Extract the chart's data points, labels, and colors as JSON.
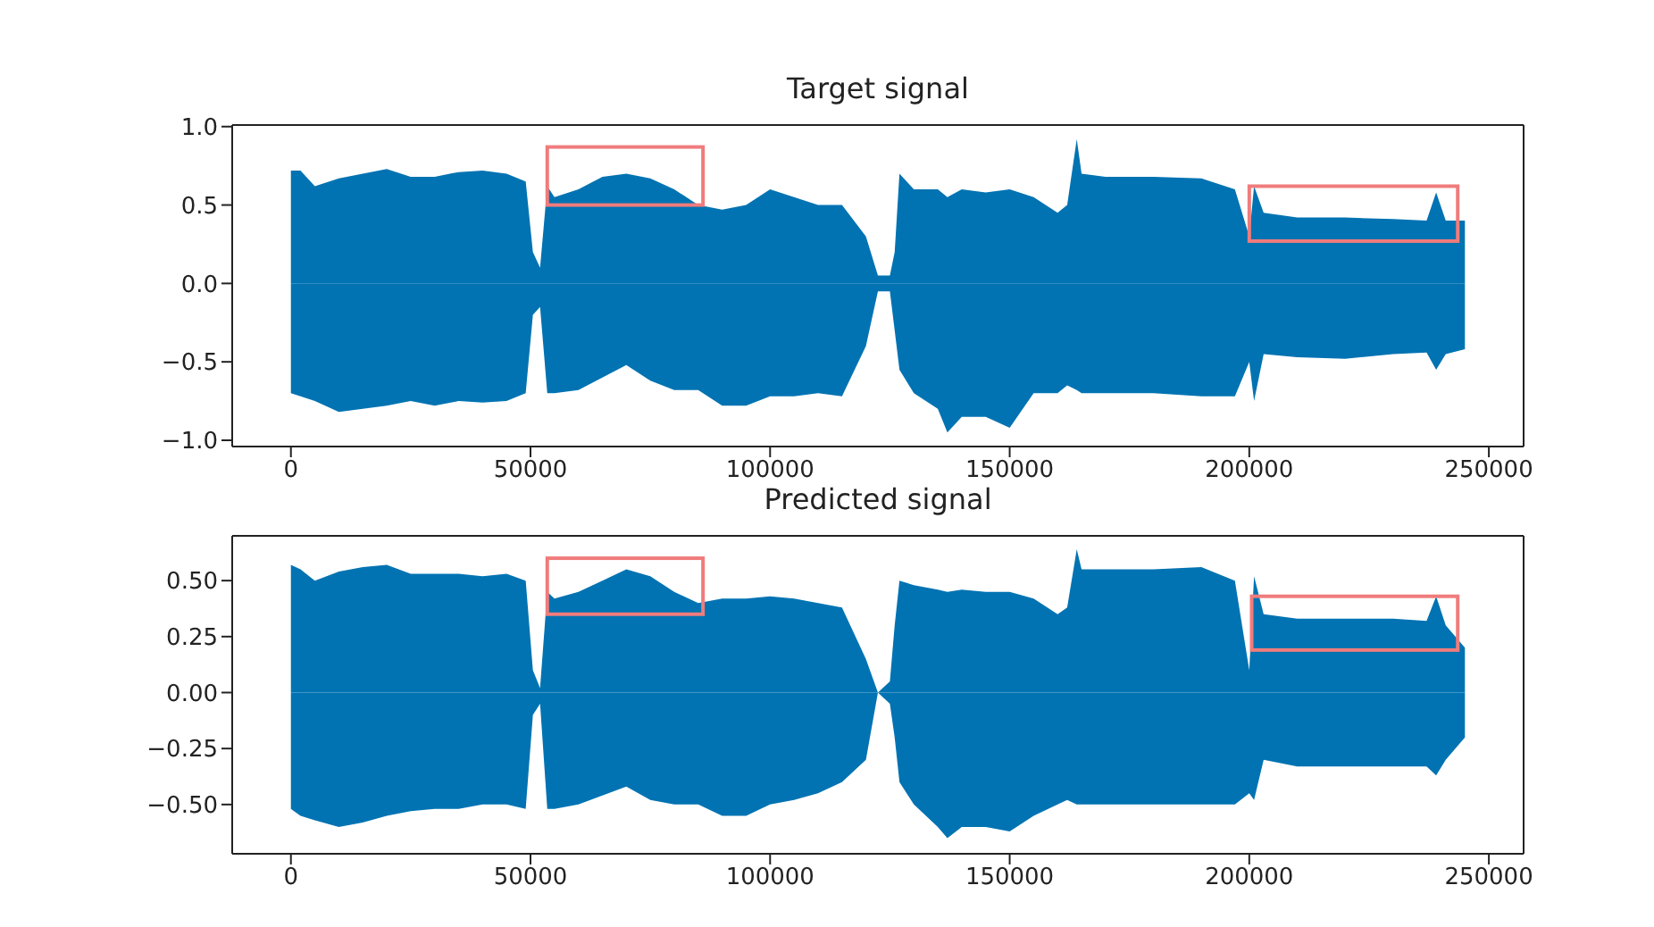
{
  "chart_data": [
    {
      "type": "area",
      "title": "Target signal",
      "x": [
        0,
        2000,
        5000,
        10000,
        15000,
        20000,
        25000,
        30000,
        35000,
        40000,
        45000,
        49000,
        50500,
        52000,
        53500,
        55000,
        60000,
        65000,
        70000,
        75000,
        80000,
        85000,
        90000,
        95000,
        100000,
        105000,
        110000,
        115000,
        120000,
        122500,
        125000,
        126000,
        127000,
        130000,
        135000,
        137000,
        140000,
        145000,
        150000,
        155000,
        160000,
        162000,
        164000,
        165000,
        170000,
        180000,
        190000,
        197000,
        200000,
        201000,
        203000,
        210000,
        220000,
        230000,
        237000,
        239000,
        241000,
        245000
      ],
      "series": [
        {
          "color": "#0173b2",
          "values": [
            0.72,
            0.72,
            0.62,
            0.67,
            0.7,
            0.73,
            0.68,
            0.68,
            0.71,
            0.72,
            0.7,
            0.65,
            0.2,
            0.1,
            0.62,
            0.55,
            0.6,
            0.68,
            0.7,
            0.67,
            0.6,
            0.5,
            0.47,
            0.5,
            0.6,
            0.55,
            0.5,
            0.5,
            0.3,
            0.05,
            0.05,
            0.2,
            0.7,
            0.6,
            0.6,
            0.55,
            0.6,
            0.58,
            0.6,
            0.55,
            0.45,
            0.5,
            0.92,
            0.7,
            0.68,
            0.68,
            0.67,
            0.6,
            0.3,
            0.62,
            0.45,
            0.42,
            0.42,
            0.41,
            0.4,
            0.58,
            0.4,
            0.4
          ]
        },
        {
          "color": "#0173b2",
          "values": [
            -0.7,
            -0.72,
            -0.75,
            -0.82,
            -0.8,
            -0.78,
            -0.75,
            -0.78,
            -0.75,
            -0.76,
            -0.75,
            -0.7,
            -0.2,
            -0.15,
            -0.7,
            -0.7,
            -0.68,
            -0.6,
            -0.52,
            -0.62,
            -0.68,
            -0.68,
            -0.78,
            -0.78,
            -0.72,
            -0.72,
            -0.7,
            -0.72,
            -0.4,
            -0.05,
            -0.05,
            -0.3,
            -0.55,
            -0.7,
            -0.8,
            -0.95,
            -0.85,
            -0.85,
            -0.92,
            -0.7,
            -0.7,
            -0.65,
            -0.68,
            -0.7,
            -0.7,
            -0.7,
            -0.72,
            -0.72,
            -0.5,
            -0.75,
            -0.45,
            -0.47,
            -0.48,
            -0.45,
            -0.44,
            -0.55,
            -0.45,
            -0.42
          ]
        }
      ],
      "xlim": [
        -12250,
        257250
      ],
      "xticks": [
        0,
        50000,
        100000,
        150000,
        200000,
        250000
      ],
      "ylim": [
        -1.04,
        1.01
      ],
      "yticks": [
        {
          "value": -1,
          "label": "−1.0"
        },
        {
          "value": -0.5,
          "label": "−0.5"
        },
        {
          "value": 0,
          "label": "0.0"
        },
        {
          "value": 0.5,
          "label": "0.5"
        },
        {
          "value": 1,
          "label": "1.0"
        }
      ]
    },
    {
      "type": "area",
      "title": "Predicted signal",
      "x": [
        0,
        2000,
        5000,
        10000,
        15000,
        20000,
        25000,
        30000,
        35000,
        40000,
        45000,
        49000,
        50500,
        52000,
        53500,
        55000,
        60000,
        65000,
        70000,
        75000,
        80000,
        85000,
        90000,
        95000,
        100000,
        105000,
        110000,
        115000,
        120000,
        122500,
        125000,
        126000,
        127000,
        130000,
        135000,
        137000,
        140000,
        145000,
        150000,
        155000,
        160000,
        162000,
        164000,
        165000,
        170000,
        180000,
        190000,
        197000,
        200000,
        201000,
        203000,
        210000,
        220000,
        230000,
        237000,
        239000,
        241000,
        245000
      ],
      "series": [
        {
          "color": "#0173b2",
          "values": [
            0.57,
            0.55,
            0.5,
            0.54,
            0.56,
            0.57,
            0.53,
            0.53,
            0.53,
            0.52,
            0.53,
            0.5,
            0.1,
            0.02,
            0.45,
            0.42,
            0.45,
            0.5,
            0.55,
            0.52,
            0.45,
            0.4,
            0.42,
            0.42,
            0.43,
            0.42,
            0.4,
            0.38,
            0.15,
            0.0,
            0.05,
            0.3,
            0.5,
            0.48,
            0.46,
            0.45,
            0.46,
            0.45,
            0.45,
            0.42,
            0.35,
            0.38,
            0.64,
            0.55,
            0.55,
            0.55,
            0.56,
            0.5,
            0.1,
            0.52,
            0.35,
            0.33,
            0.33,
            0.33,
            0.32,
            0.43,
            0.3,
            0.2
          ]
        },
        {
          "color": "#0173b2",
          "values": [
            -0.52,
            -0.55,
            -0.57,
            -0.6,
            -0.58,
            -0.55,
            -0.53,
            -0.52,
            -0.52,
            -0.5,
            -0.5,
            -0.52,
            -0.1,
            -0.05,
            -0.52,
            -0.52,
            -0.5,
            -0.46,
            -0.42,
            -0.48,
            -0.5,
            -0.5,
            -0.55,
            -0.55,
            -0.5,
            -0.48,
            -0.45,
            -0.4,
            -0.3,
            0.0,
            -0.05,
            -0.2,
            -0.4,
            -0.5,
            -0.6,
            -0.65,
            -0.6,
            -0.6,
            -0.62,
            -0.55,
            -0.5,
            -0.48,
            -0.5,
            -0.5,
            -0.5,
            -0.5,
            -0.5,
            -0.5,
            -0.45,
            -0.48,
            -0.3,
            -0.33,
            -0.33,
            -0.33,
            -0.33,
            -0.37,
            -0.3,
            -0.2
          ]
        }
      ],
      "xlim": [
        -12250,
        257250
      ],
      "xticks": [
        0,
        50000,
        100000,
        150000,
        200000,
        250000
      ],
      "ylim": [
        -0.72,
        0.7
      ],
      "yticks": [
        {
          "value": -0.5,
          "label": "−0.50"
        },
        {
          "value": -0.25,
          "label": "−0.25"
        },
        {
          "value": 0,
          "label": "0.00"
        },
        {
          "value": 0.25,
          "label": "0.25"
        },
        {
          "value": 0.5,
          "label": "0.50"
        }
      ]
    }
  ]
}
